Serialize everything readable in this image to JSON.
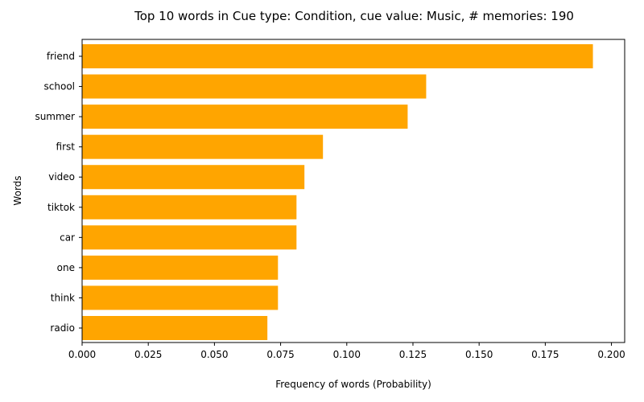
{
  "chart_data": {
    "type": "bar",
    "orientation": "horizontal",
    "title": "Top 10 words in Cue type: Condition, cue value: Music, # memories: 190",
    "xlabel": "Frequency of words (Probability)",
    "ylabel": "Words",
    "categories": [
      "friend",
      "school",
      "summer",
      "first",
      "video",
      "tiktok",
      "car",
      "one",
      "think",
      "radio"
    ],
    "values": [
      0.193,
      0.13,
      0.123,
      0.091,
      0.084,
      0.081,
      0.081,
      0.074,
      0.074,
      0.07
    ],
    "xlim": [
      0,
      0.205
    ],
    "xticks": [
      "0.000",
      "0.025",
      "0.050",
      "0.075",
      "0.100",
      "0.125",
      "0.150",
      "0.175",
      "0.200"
    ],
    "bar_color": "#FFA500",
    "grid": false,
    "legend": false
  }
}
